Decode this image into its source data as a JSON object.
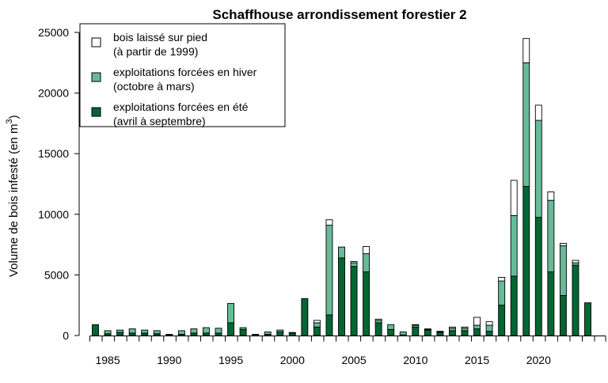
{
  "chart_data": {
    "type": "bar",
    "stacked": true,
    "title": "Schaffhouse arrondissement forestier 2",
    "ylabel": "Volume de bois infesté (en m",
    "ylabel_sup": "3",
    "ylabel_suffix": ")",
    "xlabel": "",
    "ylim": [
      0,
      25000
    ],
    "yticks": [
      0,
      5000,
      10000,
      15000,
      20000,
      25000
    ],
    "xlim": [
      1983.5,
      2025
    ],
    "xticks_labeled": [
      1985,
      1990,
      1995,
      2000,
      2005,
      2010,
      2015,
      2020
    ],
    "grid": false,
    "legend_position": "top-left",
    "legend": [
      {
        "series": "standing",
        "line1": "bois laissé sur pied",
        "line2": "(à partir de 1999)"
      },
      {
        "series": "winter",
        "line1": "exploitations forcées en hiver",
        "line2": "(octobre à mars)"
      },
      {
        "series": "summer",
        "line1": "exploitations forcées en été",
        "line2": "(avril à septembre)"
      }
    ],
    "colors": {
      "summer": "#006633",
      "winter": "#66BB99",
      "standing": "#FFFFFF",
      "outline": "#000000"
    },
    "years": [
      1984,
      1985,
      1986,
      1987,
      1988,
      1989,
      1990,
      1991,
      1992,
      1993,
      1994,
      1995,
      1996,
      1997,
      1998,
      1999,
      2000,
      2001,
      2002,
      2003,
      2004,
      2005,
      2006,
      2007,
      2008,
      2009,
      2010,
      2011,
      2012,
      2013,
      2014,
      2015,
      2016,
      2017,
      2018,
      2019,
      2020,
      2021,
      2022,
      2023,
      2024
    ],
    "summer": [
      900,
      150,
      250,
      200,
      200,
      150,
      50,
      100,
      200,
      200,
      200,
      1050,
      500,
      100,
      100,
      300,
      200,
      3050,
      700,
      1700,
      6400,
      5700,
      5250,
      1050,
      500,
      50,
      700,
      450,
      250,
      400,
      400,
      550,
      350,
      2500,
      4900,
      12300,
      9750,
      5250,
      3300,
      5800,
      2700
    ],
    "winter": [
      0,
      250,
      200,
      350,
      250,
      250,
      50,
      300,
      350,
      450,
      400,
      1600,
      150,
      0,
      200,
      150,
      50,
      0,
      350,
      7400,
      900,
      300,
      1500,
      200,
      400,
      250,
      150,
      50,
      50,
      200,
      200,
      300,
      500,
      2000,
      5000,
      10200,
      8000,
      5900,
      4100,
      200,
      0
    ],
    "standing": [
      0,
      0,
      0,
      0,
      0,
      0,
      0,
      0,
      0,
      0,
      0,
      0,
      0,
      0,
      0,
      0,
      0,
      0,
      200,
      450,
      0,
      100,
      600,
      100,
      0,
      0,
      50,
      50,
      50,
      100,
      100,
      650,
      300,
      300,
      2900,
      2000,
      1250,
      700,
      200,
      200,
      0
    ]
  }
}
